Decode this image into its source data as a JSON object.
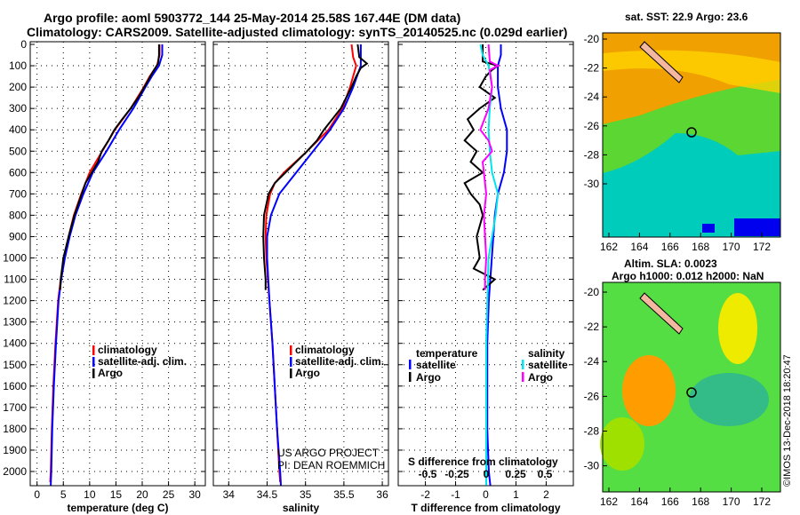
{
  "header": {
    "line1": "Argo profile: aoml 5903772_144 25-May-2014 25.58S 167.44E (DM data)",
    "line2": "Climatology: CARS2009. Satellite-adjusted climatology: synTS_20140525.nc (0.029d earlier)"
  },
  "colors": {
    "clim": "#ff0000",
    "sat": "#0000ff",
    "argo": "#000000",
    "sal_sat": "#00e5ee",
    "sal_argo": "#ff00ff"
  },
  "chart_data": [
    {
      "type": "line",
      "xlabel": "temperature (deg C)",
      "xlim": [
        -1.3,
        32
      ],
      "ylim": [
        0,
        2065
      ],
      "xticks": [
        "0",
        "5",
        "10",
        "15",
        "20",
        "25",
        "30"
      ],
      "xtickvals": [
        0,
        5,
        10,
        15,
        20,
        25,
        30
      ],
      "yticks": [
        "0",
        "100",
        "200",
        "300",
        "400",
        "500",
        "600",
        "700",
        "800",
        "900",
        "1000",
        "1100",
        "1200",
        "1300",
        "1400",
        "1500",
        "1600",
        "1700",
        "1800",
        "1900",
        "2000"
      ],
      "legend": [
        "climatology",
        "satellite-adj. clim.",
        "Argo"
      ],
      "series": [
        {
          "name": "climatology",
          "depth": [
            0,
            50,
            100,
            150,
            200,
            300,
            400,
            500,
            600,
            700,
            800,
            900,
            1000,
            1100,
            1200,
            1400,
            1600,
            1800,
            2000,
            2050
          ],
          "values": [
            23.3,
            23.3,
            22.8,
            21.4,
            20.3,
            17.8,
            14.8,
            12.4,
            10,
            8.4,
            7,
            6,
            5.1,
            4.5,
            4,
            3.5,
            3.1,
            2.8,
            2.6,
            2.5
          ]
        },
        {
          "name": "satellite-adj. clim.",
          "depth": [
            0,
            50,
            100,
            150,
            200,
            300,
            400,
            500,
            600,
            700,
            800,
            900,
            1000,
            1100,
            1200,
            1400,
            1600,
            1800,
            2000,
            2065
          ],
          "values": [
            23.8,
            23.8,
            23.2,
            21.8,
            20.6,
            18.3,
            15.6,
            13.2,
            10.6,
            8.8,
            7.3,
            6.2,
            5.3,
            4.6,
            4.1,
            3.6,
            3.2,
            2.9,
            2.7,
            2.6
          ]
        },
        {
          "name": "Argo",
          "depth": [
            0,
            50,
            90,
            130,
            200,
            250,
            300,
            350,
            400,
            450,
            500,
            550,
            600,
            650,
            700,
            800,
            900,
            1000,
            1100,
            1150
          ],
          "values": [
            23.2,
            23.2,
            23.0,
            22,
            20.4,
            19.2,
            17.8,
            16.2,
            14.7,
            13.6,
            12.3,
            11.6,
            10.4,
            9.2,
            8.5,
            7.1,
            6.0,
            5.0,
            4.5,
            4.4
          ]
        }
      ]
    },
    {
      "type": "line",
      "xlabel": "salinity",
      "xlim": [
        33.8,
        36.08
      ],
      "ylim": [
        0,
        2065
      ],
      "xticks": [
        "34",
        "34.5",
        "35",
        "35.5",
        "36"
      ],
      "xtickvals": [
        34,
        34.5,
        35,
        35.5,
        36
      ],
      "legend": [
        "climatology",
        "satellite-adj. clim.",
        "Argo"
      ],
      "annotation": [
        "US ARGO PROJECT",
        "PI: DEAN ROEMMICH"
      ],
      "series": [
        {
          "name": "climatology",
          "depth": [
            0,
            60,
            100,
            200,
            300,
            400,
            500,
            600,
            650,
            700,
            800,
            900,
            1000,
            1200,
            1400,
            1600,
            1800,
            2000,
            2050
          ],
          "values": [
            35.6,
            35.62,
            35.66,
            35.58,
            35.48,
            35.3,
            35.02,
            34.72,
            34.6,
            34.54,
            34.49,
            34.48,
            34.49,
            34.53,
            34.57,
            34.6,
            34.63,
            34.66,
            34.67
          ]
        },
        {
          "name": "satellite-adj. clim.",
          "depth": [
            0,
            60,
            100,
            200,
            300,
            400,
            500,
            600,
            700,
            800,
            900,
            1000,
            1200,
            1400,
            1600,
            1800,
            2000,
            2065
          ],
          "values": [
            35.72,
            35.72,
            35.72,
            35.62,
            35.5,
            35.32,
            35.1,
            34.88,
            34.66,
            34.55,
            34.5,
            34.5,
            34.53,
            34.57,
            34.6,
            34.63,
            34.67,
            34.68
          ]
        },
        {
          "name": "Argo",
          "depth": [
            0,
            60,
            90,
            110,
            150,
            200,
            300,
            400,
            450,
            500,
            550,
            600,
            650,
            700,
            800,
            900,
            1000,
            1100,
            1150
          ],
          "values": [
            35.68,
            35.7,
            35.8,
            35.72,
            35.66,
            35.6,
            35.46,
            35.24,
            35.15,
            35.02,
            34.88,
            34.74,
            34.6,
            34.52,
            34.46,
            34.45,
            34.46,
            34.48,
            34.48
          ]
        }
      ]
    },
    {
      "type": "line",
      "xlabel": "T difference from climatology",
      "x2label": "S difference from climatology",
      "xlim": [
        -2.9,
        2.9
      ],
      "ylim": [
        0,
        2065
      ],
      "xticks": [
        "-2",
        "-1",
        "0",
        "1",
        "2"
      ],
      "xtickvals": [
        -2,
        -1,
        0,
        1,
        2
      ],
      "x2ticks": [
        "-0.5",
        "-0.25",
        "0",
        "0.25",
        "0.5"
      ],
      "x2tickvals": [
        -0.5,
        -0.25,
        0,
        0.25,
        0.5
      ],
      "legend_t": {
        "title": "temperature",
        "items": [
          "satellite",
          "Argo"
        ]
      },
      "legend_s": {
        "title": "salinity",
        "items": [
          "satellite",
          "Argo"
        ]
      },
      "series": [
        {
          "name": "T satellite",
          "axis": "T",
          "depth": [
            0,
            50,
            100,
            200,
            300,
            400,
            500,
            600,
            700,
            800,
            1000,
            1200,
            1400,
            1600,
            1800,
            2000,
            2065
          ],
          "values": [
            0.5,
            0.5,
            0.4,
            0.4,
            0.5,
            0.7,
            0.7,
            0.6,
            0.4,
            0.3,
            0.2,
            0.1,
            0.05,
            0.05,
            0.05,
            0.1,
            0.15
          ]
        },
        {
          "name": "T Argo",
          "axis": "T",
          "depth": [
            0,
            80,
            100,
            120,
            150,
            200,
            250,
            300,
            350,
            400,
            450,
            500,
            550,
            600,
            650,
            700,
            750,
            800,
            900,
            1000,
            1050,
            1100,
            1150
          ],
          "values": [
            -0.1,
            -0.1,
            0.4,
            0.2,
            0,
            -0.2,
            0.3,
            -0.2,
            -0.6,
            -0.4,
            -0.7,
            -0.3,
            -0.5,
            -0.1,
            -0.7,
            -0.5,
            -0.2,
            -0.1,
            -0.3,
            -0.2,
            -0.4,
            0.3,
            -0.1
          ]
        },
        {
          "name": "S satellite",
          "axis": "S",
          "depth": [
            0,
            50,
            100,
            200,
            300,
            400,
            500,
            600,
            700,
            800,
            900,
            1000,
            1200,
            1400,
            1600,
            1800,
            2000,
            2065
          ],
          "values": [
            -0.05,
            -0.03,
            0.02,
            0.05,
            0.03,
            0.02,
            0.03,
            0.05,
            0.1,
            0.08,
            0.05,
            0.02,
            0.01,
            0,
            0,
            0,
            0,
            0
          ]
        },
        {
          "name": "S Argo",
          "axis": "S",
          "depth": [
            0,
            80,
            100,
            120,
            200,
            300,
            400,
            450,
            500,
            550,
            600,
            650,
            700,
            800,
            900,
            1000,
            1100,
            1150
          ],
          "values": [
            0.02,
            0.03,
            0.1,
            0.03,
            0.05,
            0.02,
            -0.05,
            0.02,
            0.05,
            -0.03,
            -0.02,
            -0.01,
            0,
            -0.02,
            -0.01,
            0,
            -0.01,
            -0.01
          ]
        }
      ]
    }
  ],
  "maps": {
    "top": {
      "title": "sat. SST: 22.9 Argo: 23.6",
      "yticks": [
        "-20",
        "-22",
        "-24",
        "-26",
        "-28",
        "-30"
      ],
      "xticks": [
        "162",
        "164",
        "166",
        "168",
        "170",
        "172"
      ]
    },
    "bottom": {
      "title1": "Altim. SLA: 0.0023",
      "title2": "Argo h1000: 0.012 h2000: NaN",
      "yticks": [
        "-20",
        "-22",
        "-24",
        "-26",
        "-28",
        "-30"
      ],
      "xticks": [
        "162",
        "164",
        "166",
        "168",
        "170",
        "172"
      ]
    },
    "credit": "©IMOS 13-Dec-2018 18:20:47"
  }
}
